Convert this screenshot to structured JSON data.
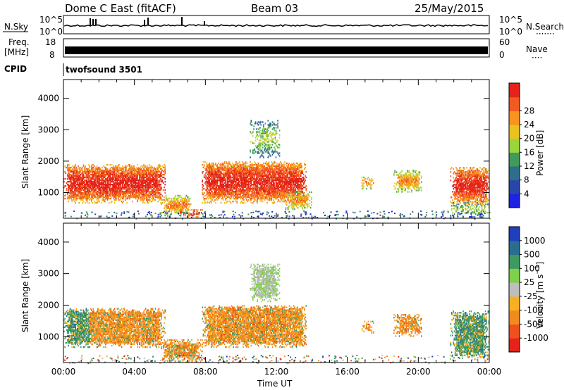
{
  "header": {
    "title": "Dome C East (fitACF)",
    "beam": "Beam 03",
    "date": "25/May/2015"
  },
  "top_panels": {
    "nsky_label": "N.Sky",
    "nsky_ticks": [
      "10^5",
      "10^0"
    ],
    "nsearch_label": "N.Search",
    "nsearch_ticks": [
      "10^5",
      "10^0"
    ],
    "freq_label": "Freq.",
    "freq_unit": "[MHz]",
    "freq_ticks": [
      "18",
      "8"
    ],
    "nave_label": "Nave",
    "nave_ticks": [
      "60",
      "0"
    ],
    "cpid_label": "CPID",
    "cpid_value": "twofsound 3501"
  },
  "chart_data": [
    {
      "type": "heatmap",
      "title": "",
      "xlabel": "",
      "ylabel": "Slant Range [km]",
      "y_ticks": [
        1000,
        2000,
        3000,
        4000
      ],
      "ylim": [
        180,
        4600
      ],
      "xlim": [
        "00:00",
        "24:00"
      ],
      "colorbar": {
        "label": "Power [dB]",
        "ticks": [
          4,
          8,
          12,
          16,
          20,
          24,
          28
        ],
        "range": [
          0,
          30
        ],
        "colors": [
          "#1e22e6",
          "#2747a8",
          "#2f6e8a",
          "#3f9a5c",
          "#9bd53c",
          "#e9c21e",
          "#f7931e",
          "#f15a22",
          "#e5231b"
        ]
      },
      "echo_regions": [
        {
          "t0": 0.0,
          "t1": 5.7,
          "r0": 650,
          "r1": 1900,
          "level": "strong"
        },
        {
          "t0": 5.5,
          "t1": 7.2,
          "r0": 250,
          "r1": 900,
          "level": "medium"
        },
        {
          "t0": 6.5,
          "t1": 7.8,
          "r0": 200,
          "r1": 450,
          "level": "strong"
        },
        {
          "t0": 7.8,
          "t1": 13.7,
          "r0": 650,
          "r1": 2000,
          "level": "strong"
        },
        {
          "t0": 10.5,
          "t1": 12.2,
          "r0": 2100,
          "r1": 3300,
          "level": "weak"
        },
        {
          "t0": 12.5,
          "t1": 14.0,
          "r0": 450,
          "r1": 1000,
          "level": "medium"
        },
        {
          "t0": 16.8,
          "t1": 17.5,
          "r0": 1100,
          "r1": 1500,
          "level": "medium"
        },
        {
          "t0": 18.6,
          "t1": 20.2,
          "r0": 1000,
          "r1": 1700,
          "level": "medium"
        },
        {
          "t0": 21.8,
          "t1": 24.0,
          "r0": 600,
          "r1": 1800,
          "level": "strong"
        },
        {
          "t0": 21.8,
          "t1": 24.0,
          "r0": 200,
          "r1": 700,
          "level": "weak"
        }
      ]
    },
    {
      "type": "heatmap",
      "title": "",
      "xlabel": "Time UT",
      "ylabel": "Slant Range [km]",
      "x_ticks": [
        "00:00",
        "04:00",
        "08:00",
        "12:00",
        "16:00",
        "20:00",
        "00:00"
      ],
      "y_ticks": [
        1000,
        2000,
        3000,
        4000
      ],
      "ylim": [
        180,
        4600
      ],
      "xlim": [
        "00:00",
        "24:00"
      ],
      "colorbar": {
        "label": "Velocity [m s^-1]",
        "ticks": [
          "1000",
          "500",
          "100",
          "25",
          "-25",
          "-100",
          "-500",
          "-1000"
        ],
        "colors": [
          "#1f3fbf",
          "#2a6e8e",
          "#3d9a62",
          "#7fd04a",
          "#bebebe",
          "#f6b020",
          "#f08b1e",
          "#f0501e",
          "#e5231b"
        ]
      },
      "echo_regions": [
        {
          "t0": 0.0,
          "t1": 5.7,
          "r0": 650,
          "r1": 1900,
          "level": "mixed"
        },
        {
          "t0": 5.5,
          "t1": 7.8,
          "r0": 200,
          "r1": 900,
          "level": "mixed"
        },
        {
          "t0": 7.8,
          "t1": 13.7,
          "r0": 650,
          "r1": 2000,
          "level": "mixed"
        },
        {
          "t0": 10.5,
          "t1": 12.2,
          "r0": 2100,
          "r1": 3300,
          "level": "mixed"
        },
        {
          "t0": 16.8,
          "t1": 17.5,
          "r0": 1100,
          "r1": 1500,
          "level": "mixed"
        },
        {
          "t0": 18.6,
          "t1": 20.2,
          "r0": 1000,
          "r1": 1700,
          "level": "mixed"
        },
        {
          "t0": 21.8,
          "t1": 24.0,
          "r0": 300,
          "r1": 1800,
          "level": "mixed"
        }
      ]
    }
  ]
}
